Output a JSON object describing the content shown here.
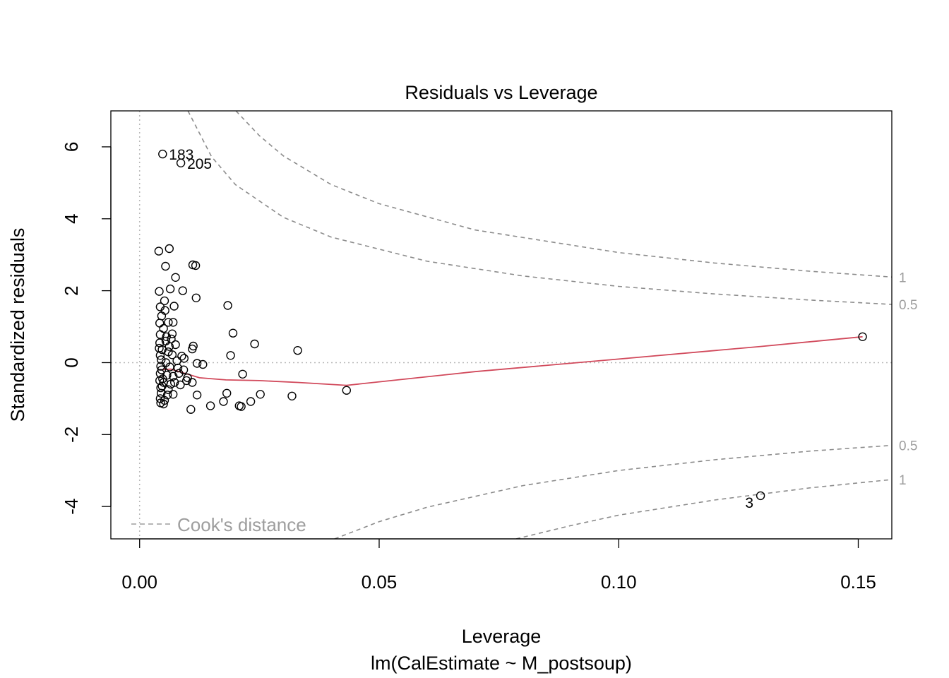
{
  "chart_data": {
    "type": "scatter",
    "title": "Residuals vs Leverage",
    "xlabel": "Leverage",
    "subtitle": "lm(CalEstimate ~ M_postsoup)",
    "ylabel": "Standardized residuals",
    "xlim": [
      -0.006,
      0.157
    ],
    "ylim": [
      -4.9,
      7.0
    ],
    "xticks": [
      0.0,
      0.05,
      0.1,
      0.15
    ],
    "xtick_labels": [
      "0.00",
      "0.05",
      "0.10",
      "0.15"
    ],
    "yticks": [
      -4,
      -2,
      0,
      2,
      4,
      6
    ],
    "ytick_labels": [
      "-4",
      "-2",
      "0",
      "2",
      "4",
      "6"
    ],
    "grid": false,
    "reference_lines": {
      "h": 0,
      "v": 0,
      "style": "dotted",
      "color": "#b8b8b8"
    },
    "points": [
      {
        "x": 0.0048,
        "y": 5.8
      },
      {
        "x": 0.0086,
        "y": 5.55
      },
      {
        "x": 0.1296,
        "y": -3.7
      },
      {
        "x": 0.1509,
        "y": 0.72
      },
      {
        "x": 0.004,
        "y": 3.1
      },
      {
        "x": 0.0062,
        "y": 3.17
      },
      {
        "x": 0.0054,
        "y": 2.68
      },
      {
        "x": 0.0111,
        "y": 2.72
      },
      {
        "x": 0.0117,
        "y": 2.7
      },
      {
        "x": 0.0075,
        "y": 2.37
      },
      {
        "x": 0.0041,
        "y": 1.98
      },
      {
        "x": 0.0064,
        "y": 2.05
      },
      {
        "x": 0.009,
        "y": 2.0
      },
      {
        "x": 0.0118,
        "y": 1.8
      },
      {
        "x": 0.0052,
        "y": 1.72
      },
      {
        "x": 0.0043,
        "y": 1.55
      },
      {
        "x": 0.0072,
        "y": 1.57
      },
      {
        "x": 0.0184,
        "y": 1.59
      },
      {
        "x": 0.0046,
        "y": 1.3
      },
      {
        "x": 0.0042,
        "y": 1.1
      },
      {
        "x": 0.006,
        "y": 1.12
      },
      {
        "x": 0.007,
        "y": 1.12
      },
      {
        "x": 0.005,
        "y": 0.95
      },
      {
        "x": 0.0195,
        "y": 0.82
      },
      {
        "x": 0.0043,
        "y": 0.78
      },
      {
        "x": 0.0056,
        "y": 0.72
      },
      {
        "x": 0.0066,
        "y": 0.66
      },
      {
        "x": 0.024,
        "y": 0.52
      },
      {
        "x": 0.0042,
        "y": 0.55
      },
      {
        "x": 0.0075,
        "y": 0.5
      },
      {
        "x": 0.0112,
        "y": 0.46
      },
      {
        "x": 0.033,
        "y": 0.34
      },
      {
        "x": 0.0047,
        "y": 0.36
      },
      {
        "x": 0.006,
        "y": 0.3
      },
      {
        "x": 0.011,
        "y": 0.38
      },
      {
        "x": 0.019,
        "y": 0.2
      },
      {
        "x": 0.0043,
        "y": 0.2
      },
      {
        "x": 0.0068,
        "y": 0.22
      },
      {
        "x": 0.0088,
        "y": 0.18
      },
      {
        "x": 0.0093,
        "y": 0.12
      },
      {
        "x": 0.0045,
        "y": 0.08
      },
      {
        "x": 0.0055,
        "y": 0.0
      },
      {
        "x": 0.012,
        "y": -0.02
      },
      {
        "x": 0.0132,
        "y": -0.05
      },
      {
        "x": 0.0044,
        "y": -0.1
      },
      {
        "x": 0.0063,
        "y": -0.12
      },
      {
        "x": 0.008,
        "y": -0.15
      },
      {
        "x": 0.0092,
        "y": -0.2
      },
      {
        "x": 0.0215,
        "y": -0.32
      },
      {
        "x": 0.0043,
        "y": -0.3
      },
      {
        "x": 0.0057,
        "y": -0.35
      },
      {
        "x": 0.007,
        "y": -0.38
      },
      {
        "x": 0.01,
        "y": -0.42
      },
      {
        "x": 0.011,
        "y": -0.55
      },
      {
        "x": 0.0042,
        "y": -0.5
      },
      {
        "x": 0.005,
        "y": -0.55
      },
      {
        "x": 0.0065,
        "y": -0.6
      },
      {
        "x": 0.0085,
        "y": -0.62
      },
      {
        "x": 0.0432,
        "y": -0.77
      },
      {
        "x": 0.0044,
        "y": -0.7
      },
      {
        "x": 0.006,
        "y": -0.75
      },
      {
        "x": 0.012,
        "y": -0.9
      },
      {
        "x": 0.0182,
        "y": -0.85
      },
      {
        "x": 0.0252,
        "y": -0.88
      },
      {
        "x": 0.0318,
        "y": -0.93
      },
      {
        "x": 0.0045,
        "y": -0.85
      },
      {
        "x": 0.007,
        "y": -0.88
      },
      {
        "x": 0.0043,
        "y": -1.0
      },
      {
        "x": 0.0052,
        "y": -1.05
      },
      {
        "x": 0.0175,
        "y": -1.08
      },
      {
        "x": 0.0232,
        "y": -1.08
      },
      {
        "x": 0.0044,
        "y": -1.12
      },
      {
        "x": 0.005,
        "y": -1.15
      },
      {
        "x": 0.0148,
        "y": -1.2
      },
      {
        "x": 0.0208,
        "y": -1.2
      },
      {
        "x": 0.0212,
        "y": -1.22
      },
      {
        "x": 0.0107,
        "y": -1.3
      },
      {
        "x": 0.0046,
        "y": -0.2
      },
      {
        "x": 0.0048,
        "y": -0.45
      },
      {
        "x": 0.0058,
        "y": -0.9
      },
      {
        "x": 0.0062,
        "y": 0.45
      },
      {
        "x": 0.0073,
        "y": -0.55
      },
      {
        "x": 0.0078,
        "y": 0.05
      },
      {
        "x": 0.0055,
        "y": 0.6
      },
      {
        "x": 0.0047,
        "y": -0.65
      },
      {
        "x": 0.0098,
        "y": -0.5
      },
      {
        "x": 0.0068,
        "y": 0.8
      },
      {
        "x": 0.0041,
        "y": 0.4
      },
      {
        "x": 0.0053,
        "y": 1.45
      },
      {
        "x": 0.0082,
        "y": -0.3
      }
    ],
    "point_labels": [
      {
        "text": "183",
        "x": 0.0048,
        "y": 5.8
      },
      {
        "text": "205",
        "x": 0.0086,
        "y": 5.55
      },
      {
        "text": "3",
        "x": 0.1296,
        "y": -3.7
      }
    ],
    "smooth_line": {
      "color": "#d1495b",
      "x": [
        0.004,
        0.0065,
        0.009,
        0.0125,
        0.018,
        0.025,
        0.033,
        0.0432,
        0.07,
        0.1,
        0.1296,
        0.1509
      ],
      "y": [
        -0.2,
        -0.18,
        -0.28,
        -0.42,
        -0.48,
        -0.5,
        -0.55,
        -0.63,
        -0.25,
        0.1,
        0.45,
        0.72
      ]
    },
    "cooks_contours": {
      "color": "#8c8c8c",
      "style": "dashed",
      "levels": [
        {
          "label": "1",
          "sign": 1,
          "x": [
            0.0201,
            0.025,
            0.03,
            0.04,
            0.05,
            0.07,
            0.1,
            0.12,
            0.14,
            0.157
          ],
          "y": [
            7.0,
            6.31,
            5.75,
            4.95,
            4.42,
            3.69,
            3.06,
            2.77,
            2.54,
            2.38
          ]
        },
        {
          "label": "0.5",
          "sign": 1,
          "x": [
            0.0101,
            0.015,
            0.02,
            0.03,
            0.04,
            0.06,
            0.08,
            0.1,
            0.12,
            0.14,
            0.157
          ],
          "y": [
            7.0,
            5.73,
            4.95,
            4.04,
            3.49,
            2.82,
            2.41,
            2.12,
            1.91,
            1.74,
            1.62
          ]
        },
        {
          "label": "0.5",
          "sign": -1,
          "x": [
            0.0407,
            0.05,
            0.06,
            0.08,
            0.1,
            0.12,
            0.14,
            0.157
          ],
          "y": [
            -4.9,
            -4.42,
            -4.02,
            -3.42,
            -3.0,
            -2.7,
            -2.46,
            -2.3
          ]
        },
        {
          "label": "1",
          "sign": -1,
          "x": [
            0.0786,
            0.09,
            0.1,
            0.12,
            0.14,
            0.157
          ],
          "y": [
            -4.9,
            -4.53,
            -4.24,
            -3.82,
            -3.48,
            -3.25
          ]
        }
      ]
    },
    "legend": {
      "label": "Cook's distance",
      "position": "bottom-left",
      "color": "#9e9e9e",
      "style": "dashed"
    }
  }
}
